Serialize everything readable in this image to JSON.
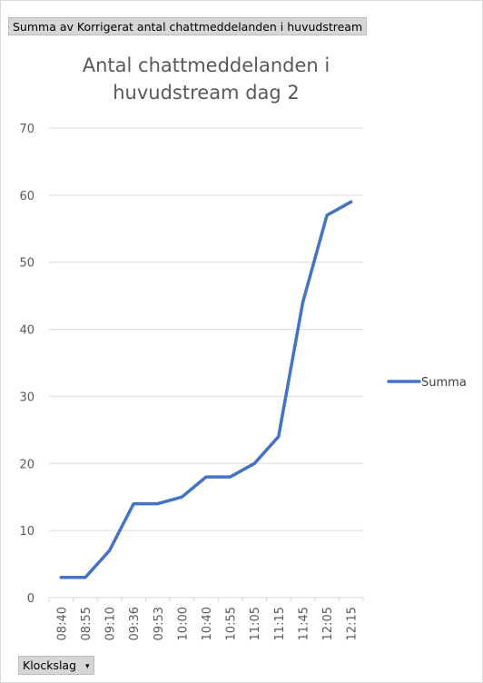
{
  "value_field": {
    "label": "Summa av Korrigerat antal chattmeddelanden i huvudstream"
  },
  "axis_field": {
    "label": "Klockslag",
    "arrow": "▾"
  },
  "chart_data": {
    "type": "line",
    "title": "Antal chattmeddelanden i huvudstream dag 2",
    "title_lines": [
      "Antal chattmeddelanden i",
      "huvudstream dag 2"
    ],
    "categories": [
      "08:40",
      "08:55",
      "09:10",
      "09:36",
      "09:53",
      "10:00",
      "10:40",
      "10:55",
      "11:05",
      "11:15",
      "11:45",
      "12:05",
      "12:15"
    ],
    "series": [
      {
        "name": "Summa",
        "values": [
          3,
          3,
          7,
          14,
          14,
          15,
          18,
          18,
          20,
          24,
          44,
          57,
          59
        ],
        "color": "#4472c4"
      }
    ],
    "ylim": [
      0,
      70
    ],
    "yticks": [
      0,
      10,
      20,
      30,
      40,
      50,
      60,
      70
    ],
    "grid": true,
    "legend": "right",
    "axis_color": "#d9d9d9",
    "text_color": "#595959"
  }
}
